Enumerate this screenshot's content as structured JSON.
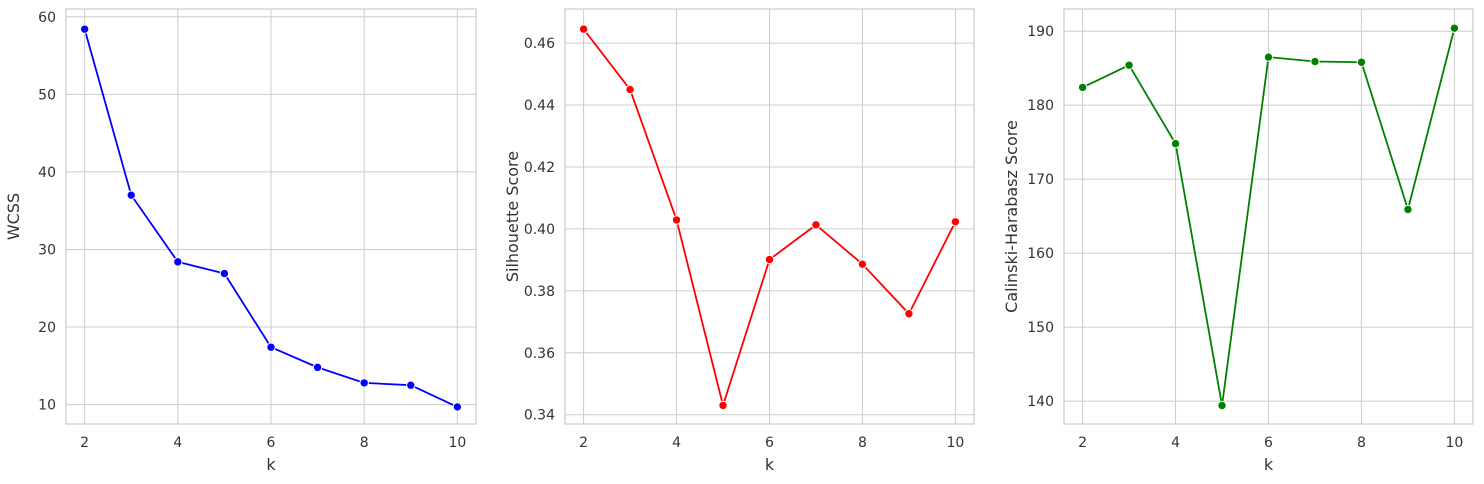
{
  "chart_data": [
    {
      "type": "line",
      "xlabel": "k",
      "ylabel": "WCSS",
      "color": "#0000ff",
      "x": [
        2,
        3,
        4,
        5,
        6,
        7,
        8,
        9,
        10
      ],
      "values": [
        58.4,
        37.0,
        28.4,
        26.9,
        17.4,
        14.8,
        12.8,
        12.5,
        9.7
      ],
      "xlim": [
        1.6,
        10.4
      ],
      "ylim": [
        7.5,
        61.0
      ],
      "xticks": [
        2,
        4,
        6,
        8,
        10
      ],
      "yticks": [
        10,
        20,
        30,
        40,
        50,
        60
      ],
      "xtick_labels": [
        "2",
        "4",
        "6",
        "8",
        "10"
      ],
      "ytick_labels": [
        "10",
        "20",
        "30",
        "40",
        "50",
        "60"
      ],
      "grid": true,
      "marker": "circle"
    },
    {
      "type": "line",
      "xlabel": "k",
      "ylabel": "Silhouette Score",
      "color": "#ff0000",
      "x": [
        2,
        3,
        4,
        5,
        6,
        7,
        8,
        9,
        10
      ],
      "values": [
        0.4645,
        0.445,
        0.4029,
        0.343,
        0.3901,
        0.4013,
        0.3886,
        0.3726,
        0.4023
      ],
      "xlim": [
        1.6,
        10.4
      ],
      "ylim": [
        0.337,
        0.471
      ],
      "xticks": [
        2,
        4,
        6,
        8,
        10
      ],
      "yticks": [
        0.34,
        0.36,
        0.38,
        0.4,
        0.42,
        0.44,
        0.46
      ],
      "xtick_labels": [
        "2",
        "4",
        "6",
        "8",
        "10"
      ],
      "ytick_labels": [
        "0.34",
        "0.36",
        "0.38",
        "0.40",
        "0.42",
        "0.44",
        "0.46"
      ],
      "grid": true,
      "marker": "circle"
    },
    {
      "type": "line",
      "xlabel": "k",
      "ylabel": "Calinski-Harabasz Score",
      "color": "#008000",
      "x": [
        2,
        3,
        4,
        5,
        6,
        7,
        8,
        9,
        10
      ],
      "values": [
        182.4,
        185.4,
        174.8,
        139.4,
        186.5,
        185.9,
        185.8,
        165.9,
        190.4
      ],
      "xlim": [
        1.6,
        10.4
      ],
      "ylim": [
        136.9,
        193.0
      ],
      "xticks": [
        2,
        4,
        6,
        8,
        10
      ],
      "yticks": [
        140,
        150,
        160,
        170,
        180,
        190
      ],
      "xtick_labels": [
        "2",
        "4",
        "6",
        "8",
        "10"
      ],
      "ytick_labels": [
        "140",
        "150",
        "160",
        "170",
        "180",
        "190"
      ],
      "grid": true,
      "marker": "circle"
    }
  ]
}
